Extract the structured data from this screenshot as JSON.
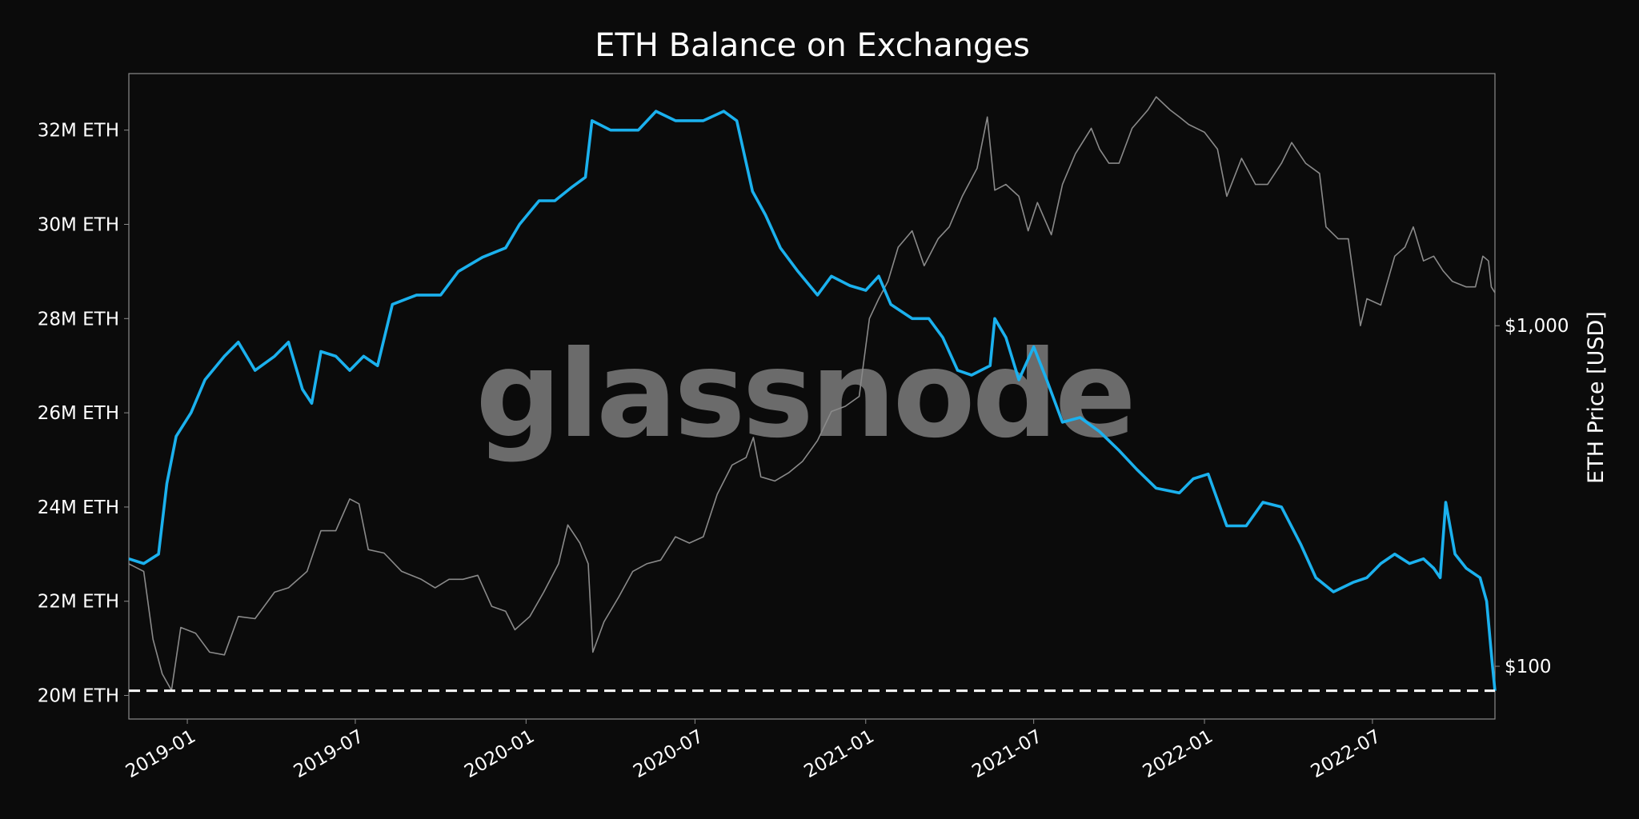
{
  "chart_data": {
    "type": "line",
    "title": "ETH Balance on Exchanges",
    "watermark": "glassnode",
    "x_ticks": [
      "2019-01",
      "2019-07",
      "2020-01",
      "2020-07",
      "2021-01",
      "2021-07",
      "2022-01",
      "2022-07"
    ],
    "x_range": [
      "2018-10-30",
      "2022-11-10"
    ],
    "y_left": {
      "ticks": [
        "20M ETH",
        "22M ETH",
        "24M ETH",
        "26M ETH",
        "28M ETH",
        "30M ETH",
        "32M ETH"
      ],
      "tick_values": [
        20,
        22,
        24,
        26,
        28,
        30,
        32
      ],
      "unit": "M ETH",
      "range": [
        19.5,
        33.2
      ]
    },
    "y_right": {
      "label": "ETH Price [USD]",
      "ticks": [
        "$100",
        "$1,000"
      ],
      "tick_values": [
        100,
        1000
      ],
      "scale": "log",
      "range": [
        70,
        5500
      ]
    },
    "reference_line": {
      "value": 20.1,
      "style": "dashed",
      "color": "#ffffff"
    },
    "series": [
      {
        "axis": "left",
        "color": "#1bb1ee",
        "points": [
          [
            "2018-10-30",
            22.9
          ],
          [
            "2018-11-15",
            22.8
          ],
          [
            "2018-12-01",
            23.0
          ],
          [
            "2018-12-10",
            24.5
          ],
          [
            "2018-12-20",
            25.5
          ],
          [
            "2019-01-05",
            26.0
          ],
          [
            "2019-01-20",
            26.7
          ],
          [
            "2019-02-10",
            27.2
          ],
          [
            "2019-02-25",
            27.5
          ],
          [
            "2019-03-15",
            26.9
          ],
          [
            "2019-04-05",
            27.2
          ],
          [
            "2019-04-20",
            27.5
          ],
          [
            "2019-05-05",
            26.5
          ],
          [
            "2019-05-15",
            26.2
          ],
          [
            "2019-05-25",
            27.3
          ],
          [
            "2019-06-10",
            27.2
          ],
          [
            "2019-06-25",
            26.9
          ],
          [
            "2019-07-10",
            27.2
          ],
          [
            "2019-07-25",
            27.0
          ],
          [
            "2019-08-10",
            28.3
          ],
          [
            "2019-09-05",
            28.5
          ],
          [
            "2019-10-01",
            28.5
          ],
          [
            "2019-10-20",
            29.0
          ],
          [
            "2019-11-15",
            29.3
          ],
          [
            "2019-12-10",
            29.5
          ],
          [
            "2019-12-25",
            30.0
          ],
          [
            "2020-01-15",
            30.5
          ],
          [
            "2020-02-01",
            30.5
          ],
          [
            "2020-02-20",
            30.8
          ],
          [
            "2020-03-05",
            31.0
          ],
          [
            "2020-03-12",
            32.2
          ],
          [
            "2020-04-01",
            32.0
          ],
          [
            "2020-05-01",
            32.0
          ],
          [
            "2020-05-20",
            32.4
          ],
          [
            "2020-06-10",
            32.2
          ],
          [
            "2020-07-10",
            32.2
          ],
          [
            "2020-08-01",
            32.4
          ],
          [
            "2020-08-15",
            32.2
          ],
          [
            "2020-09-01",
            30.7
          ],
          [
            "2020-09-15",
            30.2
          ],
          [
            "2020-10-01",
            29.5
          ],
          [
            "2020-10-20",
            29.0
          ],
          [
            "2020-11-10",
            28.5
          ],
          [
            "2020-11-25",
            28.9
          ],
          [
            "2020-12-15",
            28.7
          ],
          [
            "2021-01-01",
            28.6
          ],
          [
            "2021-01-15",
            28.9
          ],
          [
            "2021-01-28",
            28.3
          ],
          [
            "2021-02-20",
            28.0
          ],
          [
            "2021-03-10",
            28.0
          ],
          [
            "2021-03-25",
            27.6
          ],
          [
            "2021-04-10",
            26.9
          ],
          [
            "2021-04-25",
            26.8
          ],
          [
            "2021-05-15",
            27.0
          ],
          [
            "2021-05-20",
            28.0
          ],
          [
            "2021-06-01",
            27.6
          ],
          [
            "2021-06-15",
            26.7
          ],
          [
            "2021-07-01",
            27.4
          ],
          [
            "2021-07-15",
            26.7
          ],
          [
            "2021-08-01",
            25.8
          ],
          [
            "2021-08-20",
            25.9
          ],
          [
            "2021-09-10",
            25.6
          ],
          [
            "2021-10-01",
            25.2
          ],
          [
            "2021-10-20",
            24.8
          ],
          [
            "2021-11-10",
            24.4
          ],
          [
            "2021-12-05",
            24.3
          ],
          [
            "2021-12-20",
            24.6
          ],
          [
            "2022-01-05",
            24.7
          ],
          [
            "2022-01-25",
            23.6
          ],
          [
            "2022-02-15",
            23.6
          ],
          [
            "2022-03-05",
            24.1
          ],
          [
            "2022-03-25",
            24.0
          ],
          [
            "2022-04-15",
            23.2
          ],
          [
            "2022-05-01",
            22.5
          ],
          [
            "2022-05-20",
            22.2
          ],
          [
            "2022-06-10",
            22.4
          ],
          [
            "2022-06-25",
            22.5
          ],
          [
            "2022-07-10",
            22.8
          ],
          [
            "2022-07-25",
            23.0
          ],
          [
            "2022-08-10",
            22.8
          ],
          [
            "2022-08-25",
            22.9
          ],
          [
            "2022-09-05",
            22.7
          ],
          [
            "2022-09-12",
            22.5
          ],
          [
            "2022-09-18",
            24.1
          ],
          [
            "2022-09-28",
            23.0
          ],
          [
            "2022-10-10",
            22.7
          ],
          [
            "2022-10-25",
            22.5
          ],
          [
            "2022-11-01",
            22.0
          ],
          [
            "2022-11-07",
            20.7
          ],
          [
            "2022-11-10",
            20.1
          ]
        ]
      },
      {
        "axis": "right",
        "color": "#8a8a8a",
        "points": [
          [
            "2018-10-30",
            200
          ],
          [
            "2018-11-15",
            190
          ],
          [
            "2018-11-25",
            120
          ],
          [
            "2018-12-05",
            95
          ],
          [
            "2018-12-15",
            85
          ],
          [
            "2018-12-25",
            130
          ],
          [
            "2019-01-10",
            125
          ],
          [
            "2019-01-25",
            110
          ],
          [
            "2019-02-10",
            108
          ],
          [
            "2019-02-25",
            140
          ],
          [
            "2019-03-15",
            138
          ],
          [
            "2019-04-05",
            165
          ],
          [
            "2019-04-20",
            170
          ],
          [
            "2019-05-10",
            190
          ],
          [
            "2019-05-25",
            250
          ],
          [
            "2019-06-10",
            250
          ],
          [
            "2019-06-25",
            310
          ],
          [
            "2019-07-05",
            300
          ],
          [
            "2019-07-15",
            220
          ],
          [
            "2019-08-01",
            215
          ],
          [
            "2019-08-20",
            190
          ],
          [
            "2019-09-10",
            180
          ],
          [
            "2019-09-25",
            170
          ],
          [
            "2019-10-10",
            180
          ],
          [
            "2019-10-25",
            180
          ],
          [
            "2019-11-10",
            185
          ],
          [
            "2019-11-25",
            150
          ],
          [
            "2019-12-10",
            145
          ],
          [
            "2019-12-20",
            128
          ],
          [
            "2020-01-05",
            140
          ],
          [
            "2020-01-20",
            165
          ],
          [
            "2020-02-05",
            200
          ],
          [
            "2020-02-15",
            260
          ],
          [
            "2020-02-28",
            230
          ],
          [
            "2020-03-08",
            200
          ],
          [
            "2020-03-13",
            110
          ],
          [
            "2020-03-25",
            135
          ],
          [
            "2020-04-10",
            160
          ],
          [
            "2020-04-25",
            190
          ],
          [
            "2020-05-10",
            200
          ],
          [
            "2020-05-25",
            205
          ],
          [
            "2020-06-10",
            240
          ],
          [
            "2020-06-25",
            230
          ],
          [
            "2020-07-10",
            240
          ],
          [
            "2020-07-25",
            320
          ],
          [
            "2020-08-10",
            390
          ],
          [
            "2020-08-25",
            410
          ],
          [
            "2020-09-02",
            470
          ],
          [
            "2020-09-10",
            360
          ],
          [
            "2020-09-25",
            350
          ],
          [
            "2020-10-10",
            370
          ],
          [
            "2020-10-25",
            400
          ],
          [
            "2020-11-10",
            460
          ],
          [
            "2020-11-25",
            560
          ],
          [
            "2020-12-10",
            580
          ],
          [
            "2020-12-25",
            620
          ],
          [
            "2021-01-05",
            1050
          ],
          [
            "2021-01-15",
            1200
          ],
          [
            "2021-01-25",
            1350
          ],
          [
            "2021-02-05",
            1700
          ],
          [
            "2021-02-20",
            1900
          ],
          [
            "2021-03-05",
            1500
          ],
          [
            "2021-03-20",
            1800
          ],
          [
            "2021-04-01",
            1950
          ],
          [
            "2021-04-15",
            2400
          ],
          [
            "2021-05-01",
            2900
          ],
          [
            "2021-05-12",
            4100
          ],
          [
            "2021-05-20",
            2500
          ],
          [
            "2021-06-01",
            2600
          ],
          [
            "2021-06-15",
            2400
          ],
          [
            "2021-06-25",
            1900
          ],
          [
            "2021-07-05",
            2300
          ],
          [
            "2021-07-20",
            1850
          ],
          [
            "2021-08-01",
            2600
          ],
          [
            "2021-08-15",
            3200
          ],
          [
            "2021-09-01",
            3800
          ],
          [
            "2021-09-10",
            3300
          ],
          [
            "2021-09-20",
            3000
          ],
          [
            "2021-10-01",
            3000
          ],
          [
            "2021-10-15",
            3800
          ],
          [
            "2021-11-01",
            4300
          ],
          [
            "2021-11-10",
            4700
          ],
          [
            "2021-11-25",
            4300
          ],
          [
            "2021-12-05",
            4100
          ],
          [
            "2021-12-15",
            3900
          ],
          [
            "2022-01-01",
            3700
          ],
          [
            "2022-01-15",
            3300
          ],
          [
            "2022-01-25",
            2400
          ],
          [
            "2022-02-10",
            3100
          ],
          [
            "2022-02-25",
            2600
          ],
          [
            "2022-03-10",
            2600
          ],
          [
            "2022-03-25",
            3000
          ],
          [
            "2022-04-05",
            3450
          ],
          [
            "2022-04-20",
            3000
          ],
          [
            "2022-05-05",
            2800
          ],
          [
            "2022-05-12",
            1950
          ],
          [
            "2022-05-25",
            1800
          ],
          [
            "2022-06-05",
            1800
          ],
          [
            "2022-06-18",
            1000
          ],
          [
            "2022-06-25",
            1200
          ],
          [
            "2022-07-10",
            1150
          ],
          [
            "2022-07-25",
            1600
          ],
          [
            "2022-08-05",
            1700
          ],
          [
            "2022-08-14",
            1950
          ],
          [
            "2022-08-25",
            1550
          ],
          [
            "2022-09-05",
            1600
          ],
          [
            "2022-09-15",
            1450
          ],
          [
            "2022-09-25",
            1350
          ],
          [
            "2022-10-10",
            1300
          ],
          [
            "2022-10-20",
            1300
          ],
          [
            "2022-10-28",
            1600
          ],
          [
            "2022-11-03",
            1550
          ],
          [
            "2022-11-06",
            1300
          ],
          [
            "2022-11-10",
            1250
          ]
        ]
      }
    ]
  }
}
